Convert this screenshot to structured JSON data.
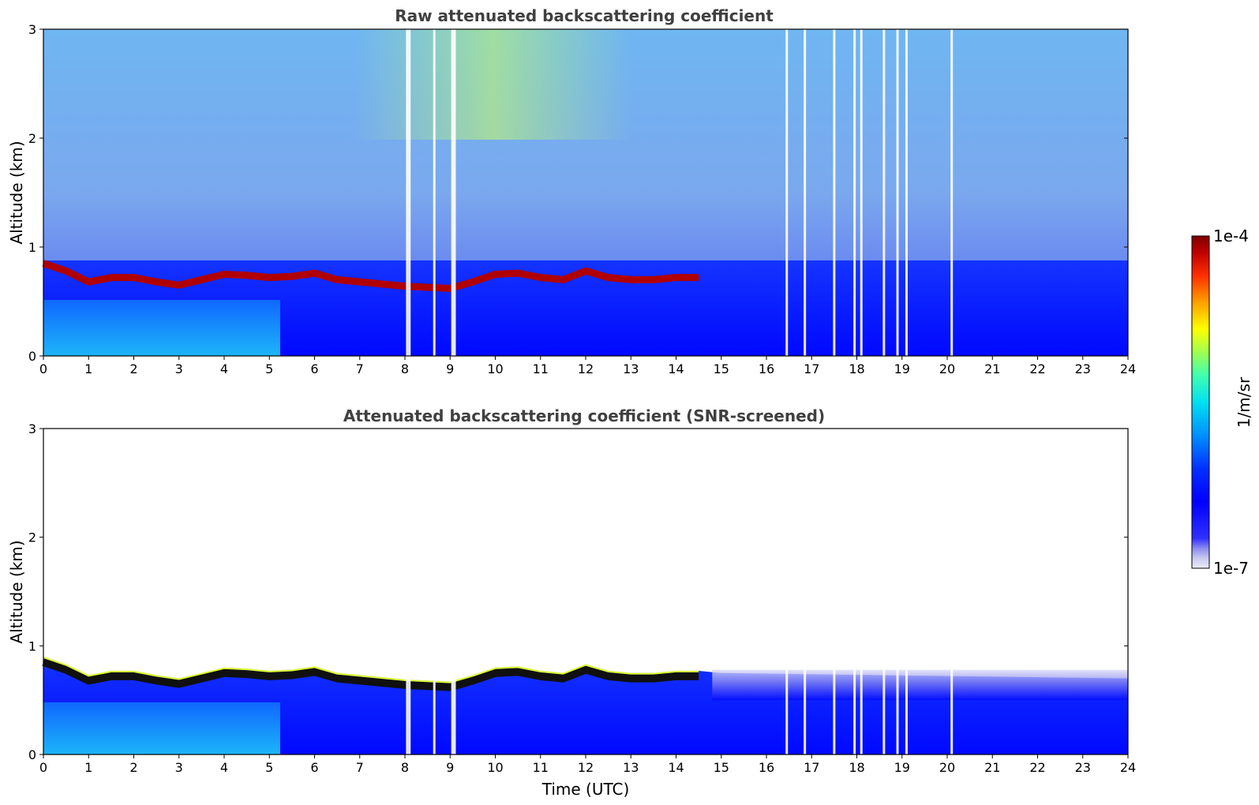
{
  "chart_data": [
    {
      "type": "heatmap",
      "title": "Raw attenuated backscattering coefficient",
      "xlabel": "",
      "ylabel": "Altitude (km)",
      "xlim": [
        0,
        24
      ],
      "ylim": [
        0,
        3
      ],
      "x_ticks": [
        0,
        1,
        2,
        3,
        4,
        5,
        6,
        7,
        8,
        9,
        10,
        11,
        12,
        13,
        14,
        15,
        16,
        17,
        18,
        19,
        20,
        21,
        22,
        23,
        24
      ],
      "y_ticks": [
        0,
        1,
        2,
        3
      ],
      "layer_altitude_km": {
        "time_utc": [
          0,
          0.5,
          1,
          1.5,
          2,
          2.5,
          3,
          3.5,
          4,
          4.5,
          5,
          5.5,
          6,
          6.5,
          7,
          7.5,
          8,
          8.5,
          9,
          9.5,
          10,
          10.5,
          11,
          11.5,
          12,
          12.5,
          13,
          13.5,
          14,
          14.5
        ],
        "altitude": [
          0.85,
          0.78,
          0.68,
          0.72,
          0.72,
          0.68,
          0.65,
          0.7,
          0.75,
          0.74,
          0.72,
          0.73,
          0.76,
          0.7,
          0.68,
          0.66,
          0.64,
          0.63,
          0.62,
          0.68,
          0.75,
          0.76,
          0.72,
          0.7,
          0.78,
          0.72,
          0.7,
          0.7,
          0.72,
          0.72
        ]
      },
      "data_gaps_utc": [
        8.05,
        8.1,
        8.65,
        9.05,
        9.1,
        16.45,
        16.85,
        17.5,
        17.95,
        18.1,
        18.6,
        18.9,
        19.1,
        20.1
      ]
    },
    {
      "type": "heatmap",
      "title": "Attenuated backscattering coefficient (SNR-screened)",
      "xlabel": "Time (UTC)",
      "ylabel": "Altitude (km)",
      "xlim": [
        0,
        24
      ],
      "ylim": [
        0,
        3
      ],
      "x_ticks": [
        0,
        1,
        2,
        3,
        4,
        5,
        6,
        7,
        8,
        9,
        10,
        11,
        12,
        13,
        14,
        15,
        16,
        17,
        18,
        19,
        20,
        21,
        22,
        23,
        24
      ],
      "y_ticks": [
        0,
        1,
        2,
        3
      ],
      "data_gaps_utc": [
        8.05,
        8.1,
        8.65,
        9.05,
        9.1,
        16.45,
        16.85,
        17.5,
        17.95,
        18.1,
        18.6,
        18.9,
        19.1,
        20.1
      ]
    }
  ],
  "colorbar": {
    "label": "1/m/sr",
    "max_label": "1e-4",
    "min_label": "1e-7",
    "colors": [
      "#e8e8f8",
      "#c8c8f0",
      "#9a9af0",
      "#6a6af0",
      "#0000ff",
      "#0020ff",
      "#0060ff",
      "#00a0ff",
      "#00d8ff",
      "#20ffd0",
      "#80ff80",
      "#d0ff30",
      "#ffe000",
      "#ff9000",
      "#ff3000",
      "#d00000",
      "#800000"
    ]
  }
}
